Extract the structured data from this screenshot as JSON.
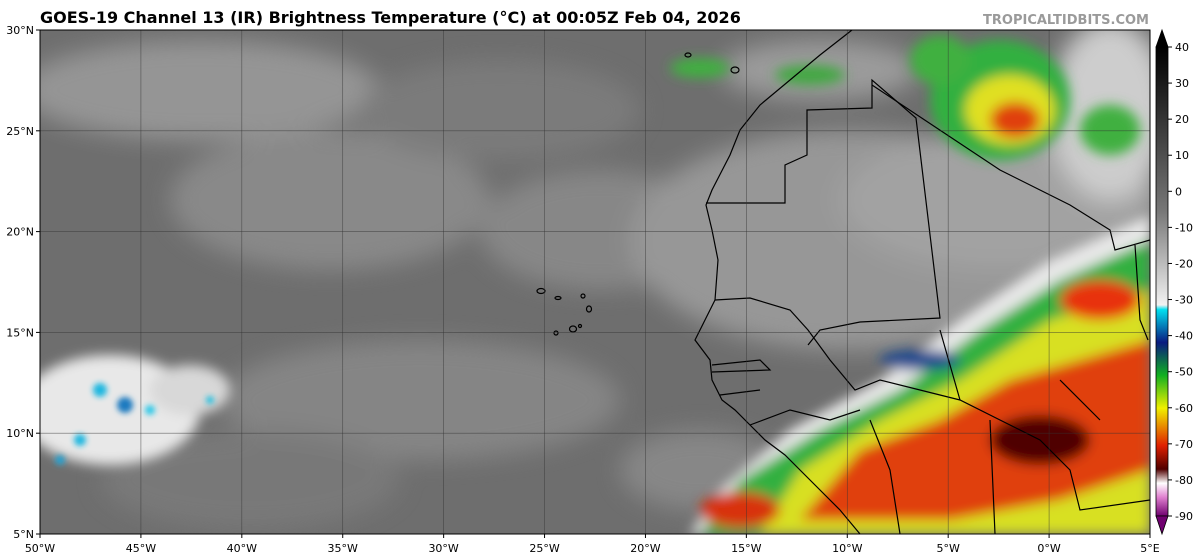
{
  "header": {
    "title": "GOES-19 Channel 13 (IR) Brightness Temperature (°C) at 00:05Z Feb 04, 2026",
    "watermark": "TROPICALTIDBITS.COM"
  },
  "map": {
    "lat_labels": [
      "30°N",
      "25°N",
      "20°N",
      "15°N",
      "10°N",
      "5°N"
    ],
    "lon_labels": [
      "50°W",
      "45°W",
      "40°W",
      "35°W",
      "30°W",
      "25°W",
      "20°W",
      "15°W",
      "10°W",
      "5°W",
      "0°W",
      "5°E"
    ]
  },
  "colorbar": {
    "ticks": [
      40,
      30,
      20,
      10,
      0,
      -10,
      -20,
      -30,
      -40,
      -50,
      -60,
      -70,
      -80,
      -90
    ]
  }
}
